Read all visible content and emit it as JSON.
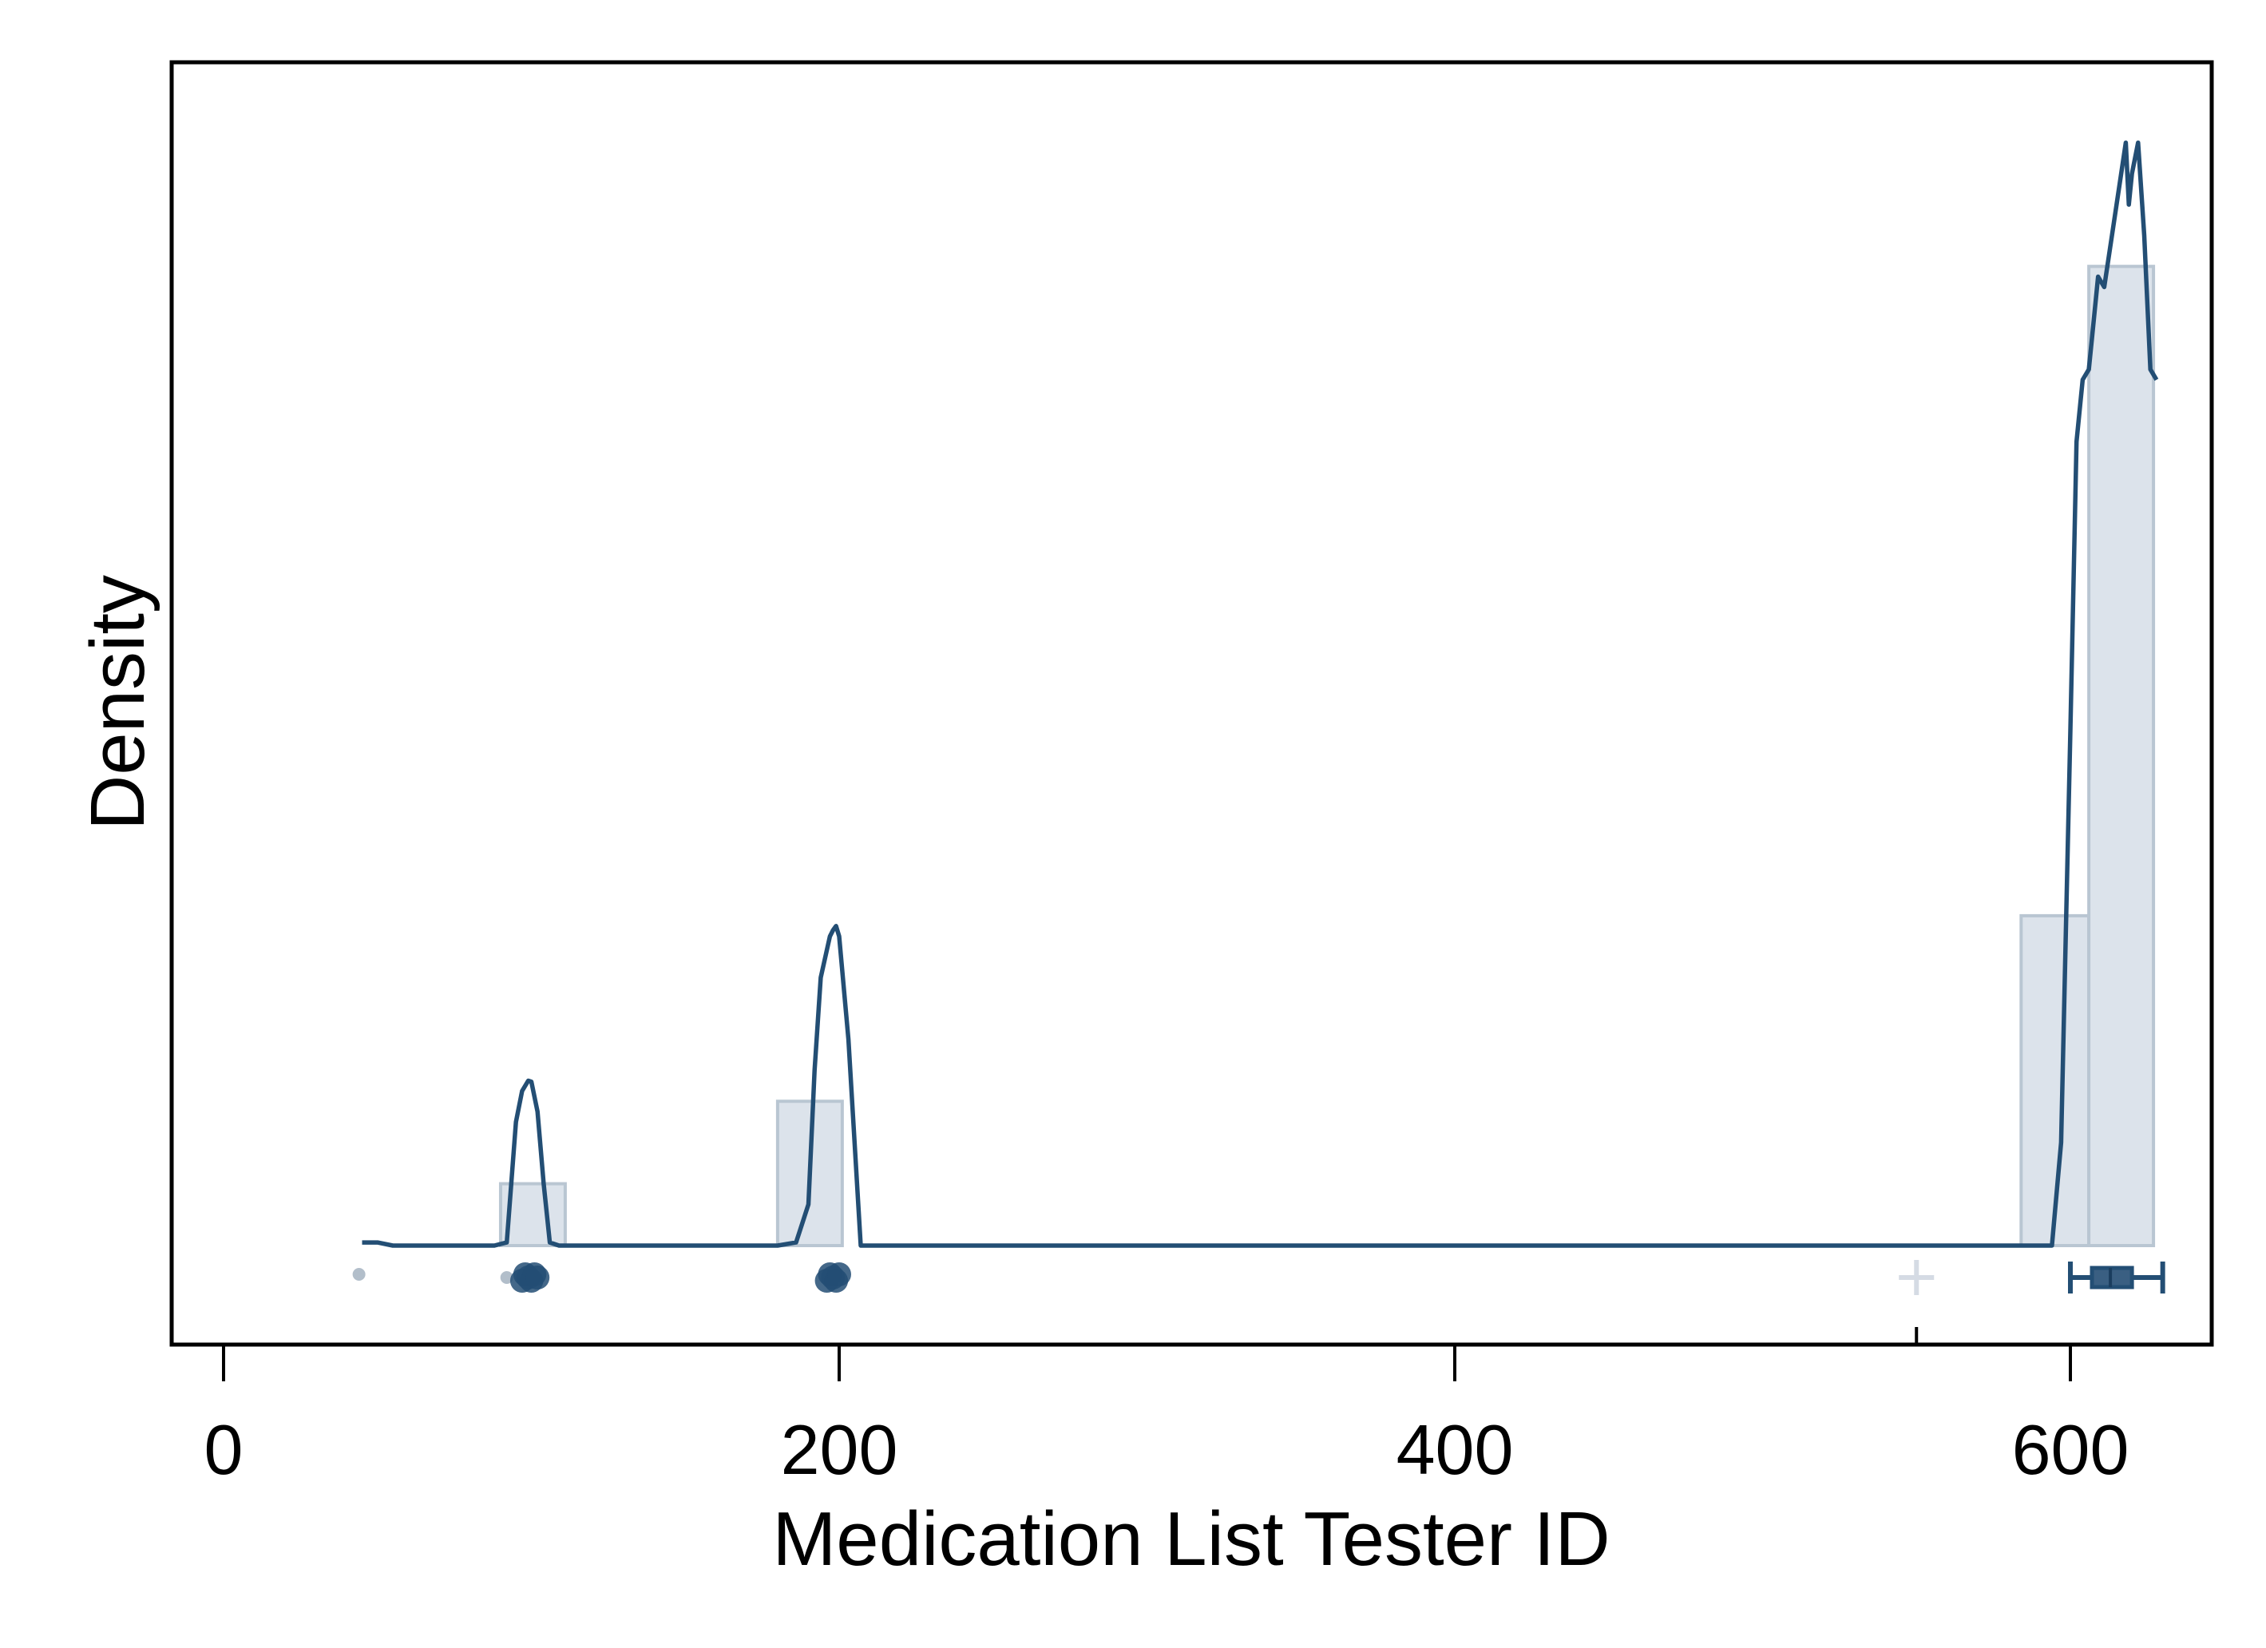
{
  "chart_data": {
    "type": "histogram+density",
    "xlabel": "Medication List Tester ID",
    "ylabel": "Density",
    "xlim": [
      -8,
      650
    ],
    "x_ticks": [
      0,
      200,
      400,
      600
    ],
    "y_ticks_shown": false,
    "grid": false,
    "colors": {
      "density_line": "#234e74",
      "hist_fill": "#dce3eb",
      "hist_stroke": "#b9c6d2",
      "box": "#234e74",
      "strip_point": "#234e74",
      "strip_faint": "#aab7c4",
      "mean_marker": "#d5dbe4"
    },
    "histogram": {
      "bins": [
        {
          "x0": 90,
          "x1": 111,
          "height": 0.06
        },
        {
          "x0": 180,
          "x1": 201,
          "height": 0.14
        },
        {
          "x0": 584,
          "x1": 606,
          "height": 0.32
        },
        {
          "x0": 606,
          "x1": 627,
          "height": 0.95
        }
      ]
    },
    "density_curve": {
      "x": [
        45,
        50,
        55,
        70,
        88,
        92,
        95,
        97,
        99,
        100,
        102,
        104,
        106,
        109,
        112,
        180,
        186,
        190,
        192,
        194,
        197,
        198,
        199,
        200,
        203,
        207,
        594,
        597,
        600,
        602,
        604,
        606,
        607,
        609,
        611,
        614,
        616,
        618,
        619,
        620,
        622,
        624,
        626,
        628
      ],
      "y": [
        0.003,
        0.003,
        0.0,
        0.0,
        0.0,
        0.003,
        0.12,
        0.15,
        0.16,
        0.159,
        0.13,
        0.06,
        0.003,
        0.0,
        0.0,
        0.0,
        0.003,
        0.04,
        0.17,
        0.26,
        0.3,
        0.306,
        0.31,
        0.3,
        0.2,
        0.0,
        0.0,
        0.1,
        0.5,
        0.78,
        0.84,
        0.85,
        0.88,
        0.94,
        0.93,
        0.99,
        1.03,
        1.07,
        1.01,
        1.04,
        1.07,
        0.98,
        0.85,
        0.84
      ],
      "y_max": 1.1
    },
    "box": {
      "min": 600,
      "q1": 607,
      "median": 613,
      "q3": 620,
      "max": 630
    },
    "strip_points_x": [
      44,
      92,
      97,
      98,
      99,
      100,
      101,
      102,
      196,
      197,
      198,
      199,
      200
    ],
    "mean_marker_x": 550
  }
}
